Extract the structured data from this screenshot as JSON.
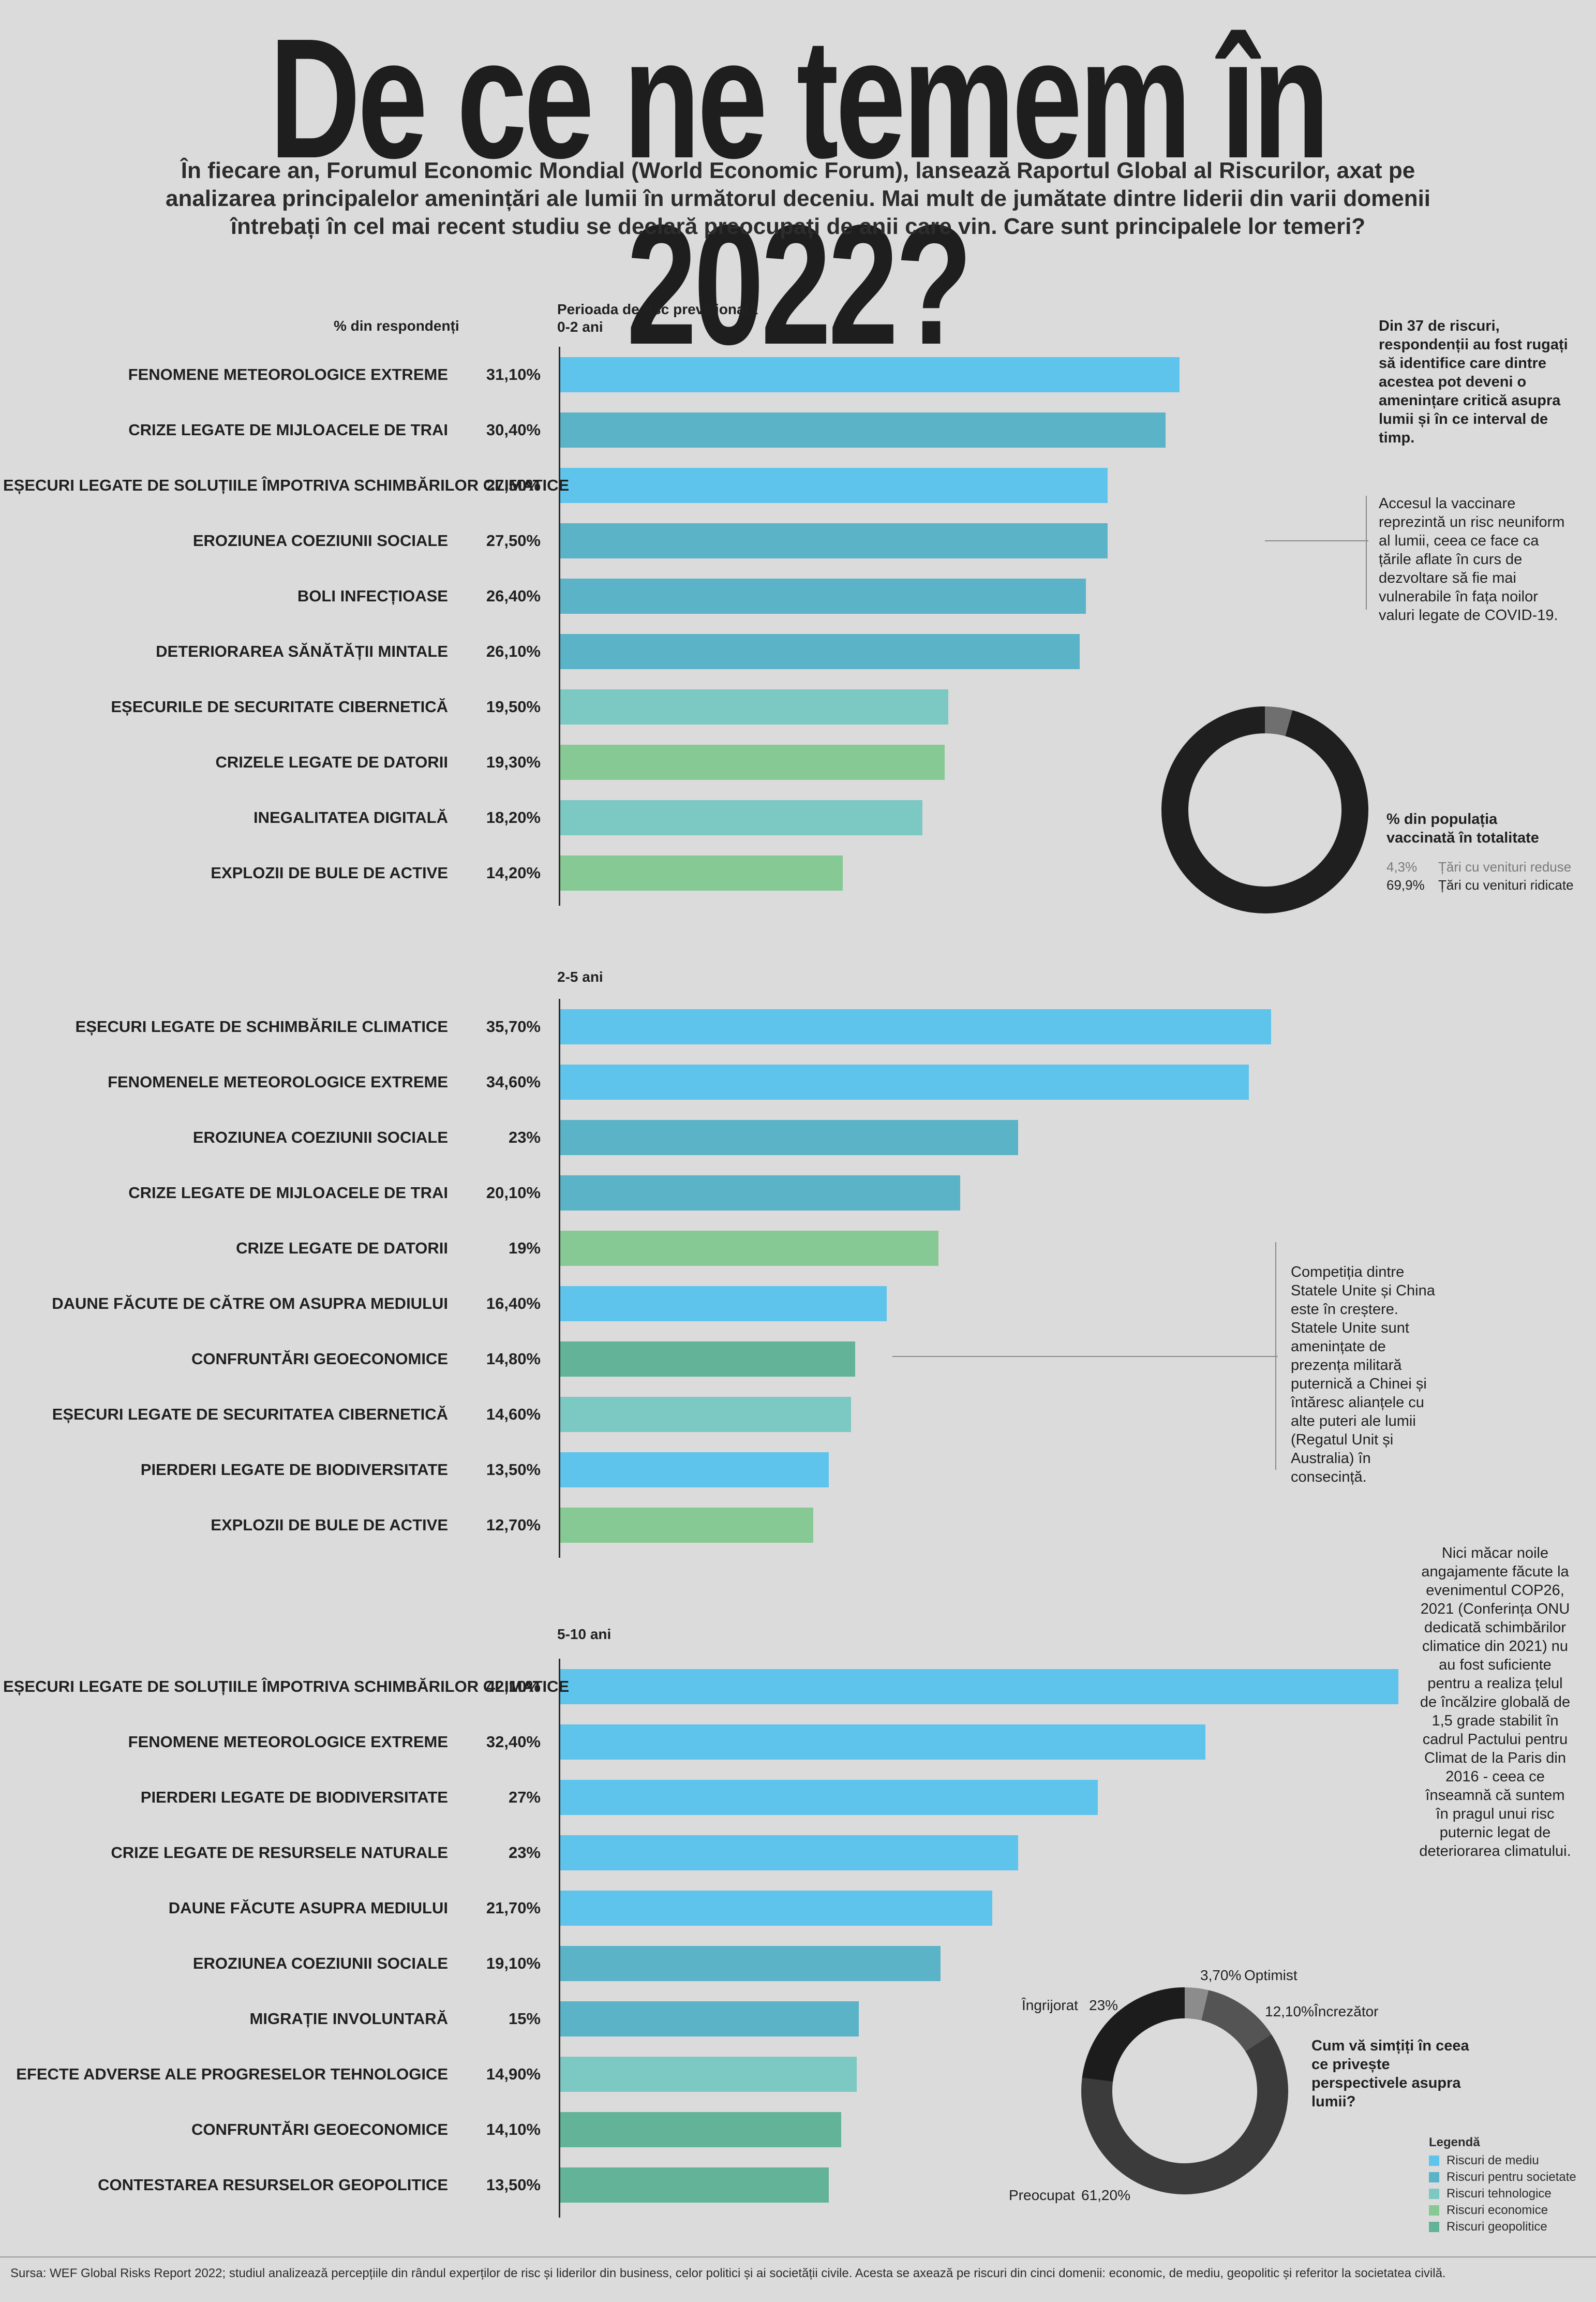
{
  "title": "De ce ne temem în 2022?",
  "intro": "În fiecare an, Forumul Economic Mondial (World Economic Forum), lansează Raportul Global al Riscurilor, axat pe analizarea principalelor amenințări ale lumii în următorul deceniu. Mai mult de jumătate dintre liderii din varii domenii întrebați în cel mai recent studiu se declară preocupați de anii care vin. Care sunt principalele lor temeri?",
  "colors": {
    "mediu": "#5ec4ec",
    "societate": "#5ab3c7",
    "tehnologice": "#7cc8c2",
    "economice": "#86c994",
    "geopolitice": "#63b398"
  },
  "headers": {
    "respondents": "% din respondenți",
    "period_label": "Perioada de risc previzionată",
    "p1": "0-2 ani",
    "p2": "2-5 ani",
    "p3": "5-10 ani"
  },
  "chart_data": [
    {
      "type": "bar",
      "orientation": "horizontal",
      "period": "0-2 ani",
      "xlim": [
        0,
        42.1
      ],
      "rows": [
        {
          "label": "FENOMENE METEOROLOGICE EXTREME",
          "display": "31,10%",
          "value": 31.1,
          "cat": "mediu"
        },
        {
          "label": "CRIZE LEGATE DE MIJLOACELE DE TRAI",
          "display": "30,40%",
          "value": 30.4,
          "cat": "societate"
        },
        {
          "label": "EȘECURI LEGATE DE SOLUȚIILE ÎMPOTRIVA SCHIMBĂRILOR CLIMATICE",
          "display": "27,50%",
          "value": 27.5,
          "cat": "mediu"
        },
        {
          "label": "EROZIUNEA COEZIUNII SOCIALE",
          "display": "27,50%",
          "value": 27.5,
          "cat": "societate"
        },
        {
          "label": "BOLI INFECȚIOASE",
          "display": "26,40%",
          "value": 26.4,
          "cat": "societate"
        },
        {
          "label": "DETERIORAREA SĂNĂTĂȚII MINTALE",
          "display": "26,10%",
          "value": 26.1,
          "cat": "societate"
        },
        {
          "label": "EȘECURILE DE SECURITATE CIBERNETICĂ",
          "display": "19,50%",
          "value": 19.5,
          "cat": "tehnologice"
        },
        {
          "label": "CRIZELE LEGATE DE DATORII",
          "display": "19,30%",
          "value": 19.3,
          "cat": "economice"
        },
        {
          "label": "INEGALITATEA DIGITALĂ",
          "display": "18,20%",
          "value": 18.2,
          "cat": "tehnologice"
        },
        {
          "label": "EXPLOZII DE BULE DE ACTIVE",
          "display": "14,20%",
          "value": 14.2,
          "cat": "economice"
        }
      ]
    },
    {
      "type": "bar",
      "orientation": "horizontal",
      "period": "2-5 ani",
      "xlim": [
        0,
        42.1
      ],
      "rows": [
        {
          "label": "EȘECURI LEGATE DE SCHIMBĂRILE CLIMATICE",
          "display": "35,70%",
          "value": 35.7,
          "cat": "mediu"
        },
        {
          "label": "FENOMENELE METEOROLOGICE EXTREME",
          "display": "34,60%",
          "value": 34.6,
          "cat": "mediu"
        },
        {
          "label": "EROZIUNEA COEZIUNII SOCIALE",
          "display": "23%",
          "value": 23,
          "cat": "societate"
        },
        {
          "label": "CRIZE LEGATE DE MIJLOACELE DE TRAI",
          "display": "20,10%",
          "value": 20.1,
          "cat": "societate"
        },
        {
          "label": "CRIZE LEGATE DE DATORII",
          "display": "19%",
          "value": 19,
          "cat": "economice"
        },
        {
          "label": "DAUNE FĂCUTE DE CĂTRE OM ASUPRA MEDIULUI",
          "display": "16,40%",
          "value": 16.4,
          "cat": "mediu"
        },
        {
          "label": "CONFRUNTĂRI GEOECONOMICE",
          "display": "14,80%",
          "value": 14.8,
          "cat": "geopolitice"
        },
        {
          "label": "EȘECURI LEGATE DE SECURITATEA CIBERNETICĂ",
          "display": "14,60%",
          "value": 14.6,
          "cat": "tehnologice"
        },
        {
          "label": "PIERDERI LEGATE DE BIODIVERSITATE",
          "display": "13,50%",
          "value": 13.5,
          "cat": "mediu"
        },
        {
          "label": "EXPLOZII DE BULE DE ACTIVE",
          "display": "12,70%",
          "value": 12.7,
          "cat": "economice"
        }
      ]
    },
    {
      "type": "bar",
      "orientation": "horizontal",
      "period": "5-10 ani",
      "xlim": [
        0,
        42.1
      ],
      "rows": [
        {
          "label": "EȘECURI LEGATE DE SOLUȚIILE ÎMPOTRIVA SCHIMBĂRILOR CLIMATICE",
          "display": "42,10%",
          "value": 42.1,
          "cat": "mediu"
        },
        {
          "label": "FENOMENE METEOROLOGICE EXTREME",
          "display": "32,40%",
          "value": 32.4,
          "cat": "mediu"
        },
        {
          "label": "PIERDERI LEGATE DE BIODIVERSITATE",
          "display": "27%",
          "value": 27,
          "cat": "mediu"
        },
        {
          "label": "CRIZE LEGATE DE RESURSELE NATURALE",
          "display": "23%",
          "value": 23,
          "cat": "mediu"
        },
        {
          "label": "DAUNE FĂCUTE ASUPRA MEDIULUI",
          "display": "21,70%",
          "value": 21.7,
          "cat": "mediu"
        },
        {
          "label": "EROZIUNEA COEZIUNII SOCIALE",
          "display": "19,10%",
          "value": 19.1,
          "cat": "societate"
        },
        {
          "label": "MIGRAȚIE INVOLUNTARĂ",
          "display": "15%",
          "value": 15,
          "cat": "societate"
        },
        {
          "label": "EFECTE ADVERSE ALE PROGRESELOR TEHNOLOGICE",
          "display": "14,90%",
          "value": 14.9,
          "cat": "tehnologice"
        },
        {
          "label": "CONFRUNTĂRI GEOECONOMICE",
          "display": "14,10%",
          "value": 14.1,
          "cat": "geopolitice"
        },
        {
          "label": "CONTESTAREA RESURSELOR GEOPOLITICE",
          "display": "13,50%",
          "value": 13.5,
          "cat": "geopolitice"
        }
      ]
    }
  ],
  "notes": {
    "n1": "Din 37 de riscuri, respondenții au fost rugați să identifice care dintre acestea pot deveni o amenințare critică asupra lumii și în ce interval de timp.",
    "n2": "Accesul la vaccinare reprezintă un risc neuniform al lumii, ceea ce face ca țările aflate în curs de dezvoltare să fie mai vulnerabile în fața  noilor valuri legate de COVID-19.",
    "n3": "Competiția dintre Statele Unite și China este în creștere. Statele Unite sunt amenințate de prezența militară puternică a Chinei și întăresc alianțele cu alte puteri ale lumii (Regatul Unit și Australia) în consecință.",
    "n4": "Nici măcar noile angajamente făcute la evenimentul COP26, 2021 (Conferința ONU dedicată schimbărilor climatice din 2021) nu au fost suficiente pentru a realiza țelul de încălzire globală de 1,5 grade stabilit în cadrul Pactului pentru Climat de la Paris din 2016 - ceea ce înseamnă că suntem în pragul unui risc puternic legat de deteriorarea climatului."
  },
  "vaccine_donut": {
    "title": "% din populația vaccinată în totalitate",
    "items": [
      {
        "value_label": "4,3%",
        "label": "Țări cu venituri reduse",
        "value": 4.3,
        "color": "#6f6f6f"
      },
      {
        "value_label": "69,9%",
        "label": "Țări cu venituri ridicate",
        "value": 69.9,
        "color": "#1e1f1e"
      }
    ]
  },
  "feel_donut": {
    "title": "Cum vă simțiți în ceea ce privește perspectivele asupra lumii?",
    "items": [
      {
        "value_label": "3,70%",
        "label": "Optimist",
        "value": 3.7,
        "color": "#8c8c8c"
      },
      {
        "value_label": "12,10%",
        "label": "Încrezător",
        "value": 12.1,
        "color": "#545454"
      },
      {
        "value_label": "61,20%",
        "label": "Preocupat",
        "value": 61.2,
        "color": "#3b3b3b"
      },
      {
        "value_label": "23%",
        "label": "Îngrijorat",
        "value": 23,
        "color": "#1c1c1c"
      }
    ]
  },
  "legend": {
    "title": "Legendă",
    "items": [
      {
        "label": "Riscuri de mediu",
        "cat": "mediu"
      },
      {
        "label": "Riscuri pentru societate",
        "cat": "societate"
      },
      {
        "label": "Riscuri tehnologice",
        "cat": "tehnologice"
      },
      {
        "label": "Riscuri economice",
        "cat": "economice"
      },
      {
        "label": "Riscuri geopolitice",
        "cat": "geopolitice"
      }
    ]
  },
  "footer": "Sursa: WEF Global Risks Report 2022; studiul analizează percepțiile din rândul experților de risc și liderilor din business, celor politici și ai societății civile. Acesta se axează pe riscuri din cinci domenii: economic, de mediu, geopolitic și referitor la societatea civilă."
}
